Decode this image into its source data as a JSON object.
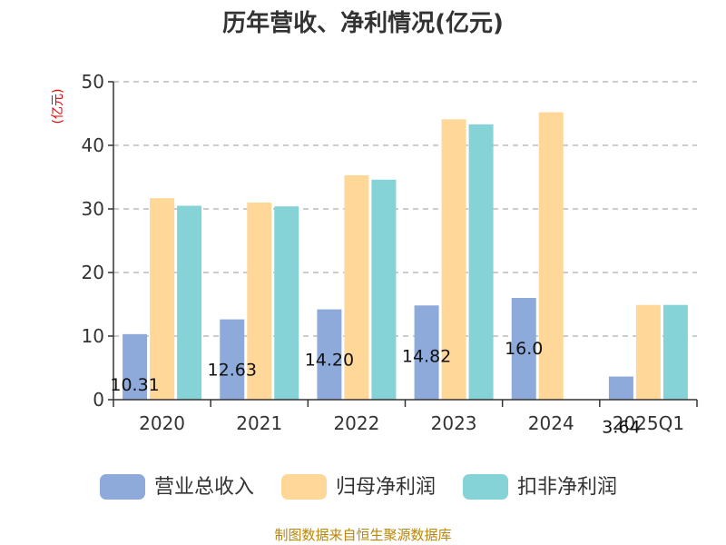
{
  "chart_data": {
    "type": "bar",
    "title": "历年营收、净利情况(亿元)",
    "ylabel": "(亿元)",
    "ylim": [
      0,
      50
    ],
    "yticks": [
      "0",
      "10",
      "20",
      "30",
      "40",
      "50"
    ],
    "grid": true,
    "legend_position": "bottom",
    "categories": [
      "2020",
      "2021",
      "2022",
      "2023",
      "2024",
      "2025Q1"
    ],
    "series": [
      {
        "name": "营业总收入",
        "color": "#8eaadb",
        "values": [
          10.31,
          12.63,
          14.2,
          14.82,
          16.0,
          3.64
        ],
        "labels": [
          "10.31",
          "12.63",
          "14.20",
          "14.82",
          "16.0",
          "3.64"
        ]
      },
      {
        "name": "归母净利润",
        "color": "#ffd899",
        "values": [
          31.7,
          31.0,
          35.3,
          44.1,
          45.2,
          14.9
        ]
      },
      {
        "name": "扣非净利润",
        "color": "#86d3d7",
        "values": [
          30.5,
          30.4,
          34.6,
          43.3,
          null,
          14.9
        ]
      }
    ],
    "source": "制图数据来自恒生聚源数据库"
  }
}
